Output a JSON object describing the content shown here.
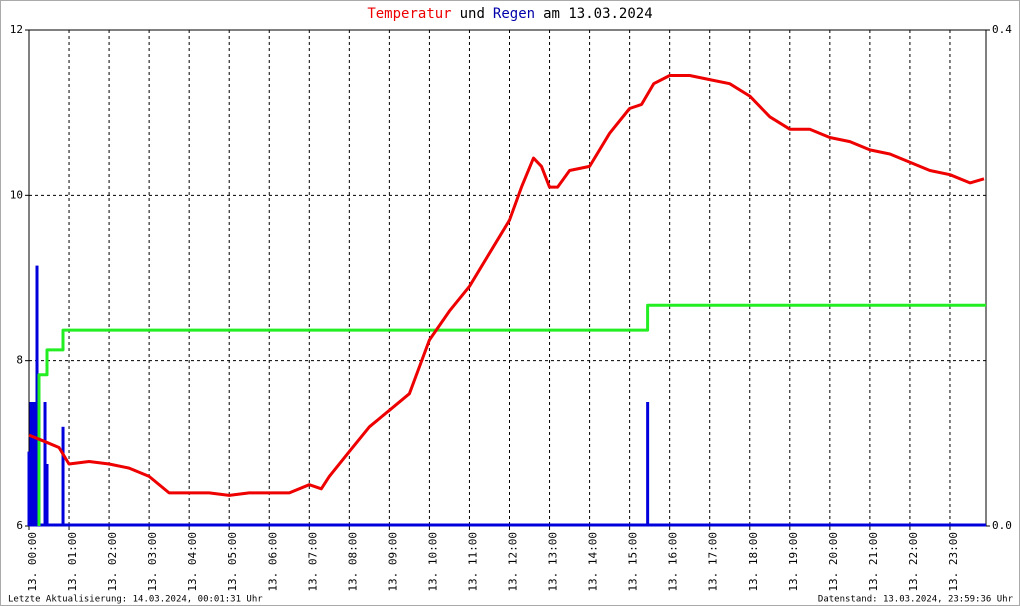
{
  "chart_data": {
    "type": "line",
    "title": [
      {
        "text": "Temperatur",
        "color": "#ee0000"
      },
      {
        "text": "und",
        "color": "#000000"
      },
      {
        "text": "Regen",
        "color": "#0000aa"
      },
      {
        "text": "am 13.03.2024",
        "color": "#000000"
      }
    ],
    "footer_left": "Letzte Aktualisierung: 14.03.2024, 00:01:31 Uhr",
    "footer_right": "Datenstand: 13.03.2024, 23:59:36 Uhr",
    "xlim": [
      0,
      23.9
    ],
    "xticks": [
      {
        "value": 0,
        "label": "13. 00:00"
      },
      {
        "value": 1,
        "label": "13. 01:00"
      },
      {
        "value": 2,
        "label": "13. 02:00"
      },
      {
        "value": 3,
        "label": "13. 03:00"
      },
      {
        "value": 4,
        "label": "13. 04:00"
      },
      {
        "value": 5,
        "label": "13. 05:00"
      },
      {
        "value": 6,
        "label": "13. 06:00"
      },
      {
        "value": 7,
        "label": "13. 07:00"
      },
      {
        "value": 8,
        "label": "13. 08:00"
      },
      {
        "value": 9,
        "label": "13. 09:00"
      },
      {
        "value": 10,
        "label": "13. 10:00"
      },
      {
        "value": 11,
        "label": "13. 11:00"
      },
      {
        "value": 12,
        "label": "13. 12:00"
      },
      {
        "value": 13,
        "label": "13. 13:00"
      },
      {
        "value": 14,
        "label": "13. 14:00"
      },
      {
        "value": 15,
        "label": "13. 15:00"
      },
      {
        "value": 16,
        "label": "13. 16:00"
      },
      {
        "value": 17,
        "label": "13. 17:00"
      },
      {
        "value": 18,
        "label": "13. 18:00"
      },
      {
        "value": 19,
        "label": "13. 19:00"
      },
      {
        "value": 20,
        "label": "13. 20:00"
      },
      {
        "value": 21,
        "label": "13. 21:00"
      },
      {
        "value": 22,
        "label": "13. 22:00"
      },
      {
        "value": 23,
        "label": "13. 23:00"
      }
    ],
    "ylim": [
      6,
      12
    ],
    "yticks": [
      6,
      8,
      10,
      12
    ],
    "y2lim": [
      0,
      0.4
    ],
    "y2ticks": [
      {
        "value": 0,
        "label": "0.0"
      },
      {
        "value": 0.4,
        "label": "0.4"
      }
    ],
    "grid": true,
    "series": [
      {
        "type": "bar",
        "axis": "y2",
        "color": "#0000dd",
        "x": [
          0.0,
          0.05,
          0.1,
          0.15,
          0.2,
          0.25,
          0.4,
          0.45,
          0.85,
          15.45
        ],
        "values": [
          0.06,
          0.1,
          0.1,
          0.1,
          0.21,
          0.1,
          0.1,
          0.05,
          0.08,
          0.1
        ]
      },
      {
        "type": "line",
        "axis": "y2",
        "color": "#22ee22",
        "x": [
          0.25,
          0.25,
          0.45,
          0.45,
          0.85,
          0.85,
          15.45,
          15.45,
          23.9
        ],
        "values": [
          0,
          0.122,
          0.122,
          0.142,
          0.142,
          0.158,
          0.158,
          0.178,
          0.178
        ]
      },
      {
        "type": "line",
        "color": "#ee0000",
        "x": [
          0,
          0.25,
          0.5,
          0.75,
          1.0,
          1.5,
          2.0,
          2.5,
          3.0,
          3.5,
          4.0,
          4.5,
          5.0,
          5.5,
          6.0,
          6.5,
          7.0,
          7.3,
          7.5,
          8.0,
          8.5,
          9.0,
          9.5,
          10.0,
          10.5,
          11.0,
          11.5,
          12.0,
          12.3,
          12.6,
          12.8,
          13.0,
          13.2,
          13.5,
          14.0,
          14.5,
          15.0,
          15.3,
          15.6,
          16.0,
          16.5,
          17.0,
          17.5,
          18.0,
          18.5,
          19.0,
          19.5,
          20.0,
          20.5,
          21.0,
          21.5,
          22.0,
          22.5,
          23.0,
          23.5,
          23.85
        ],
        "values": [
          7.1,
          7.05,
          7.0,
          6.95,
          6.75,
          6.78,
          6.75,
          6.7,
          6.6,
          6.4,
          6.4,
          6.4,
          6.37,
          6.4,
          6.4,
          6.4,
          6.5,
          6.45,
          6.6,
          6.9,
          7.2,
          7.4,
          7.6,
          8.25,
          8.6,
          8.9,
          9.3,
          9.7,
          10.1,
          10.45,
          10.35,
          10.1,
          10.1,
          10.3,
          10.35,
          10.75,
          11.05,
          11.1,
          11.35,
          11.45,
          11.45,
          11.4,
          11.35,
          11.2,
          10.95,
          10.8,
          10.8,
          10.7,
          10.65,
          10.55,
          10.5,
          10.4,
          10.3,
          10.25,
          10.15,
          10.2
        ]
      }
    ]
  }
}
